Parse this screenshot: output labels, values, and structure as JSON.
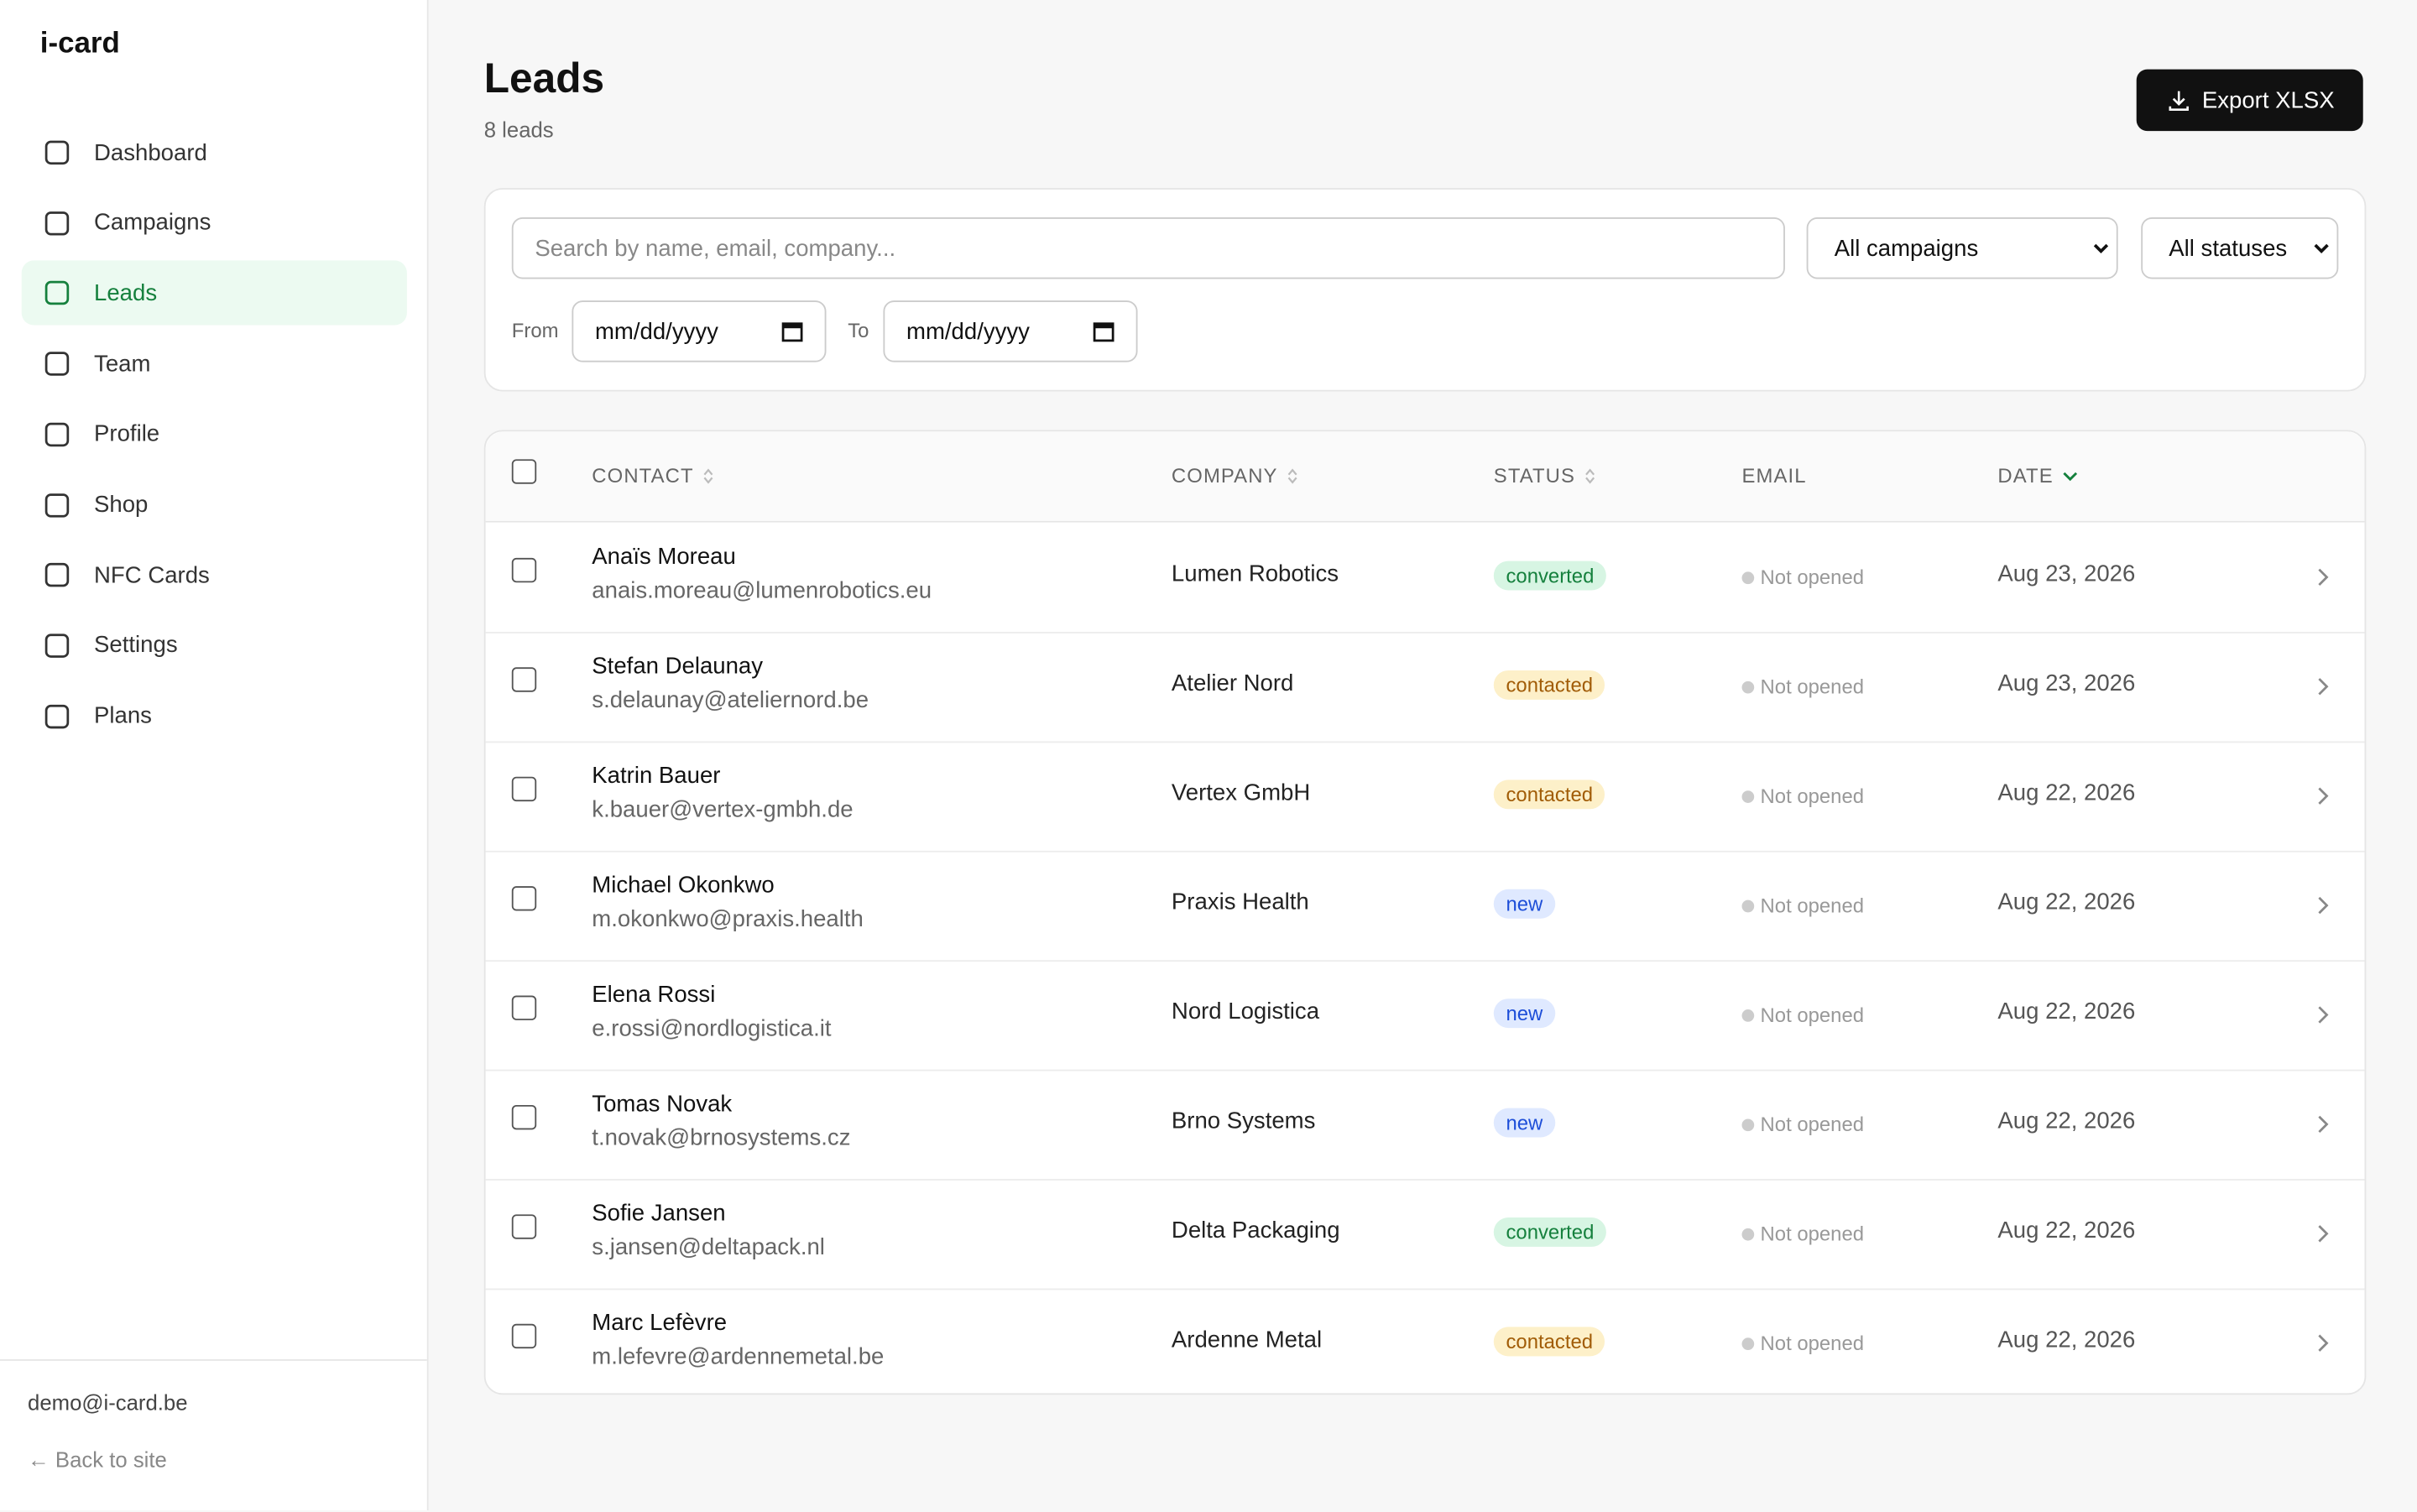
{
  "sidebar": {
    "brand": "i-card",
    "nav": [
      "Dashboard",
      "Campaigns",
      "Leads",
      "Team",
      "Profile",
      "Shop",
      "NFC Cards",
      "Settings",
      "Plans"
    ],
    "active": "Leads",
    "user_email": "demo@i-card.be",
    "back_link": "← Back to site"
  },
  "header": {
    "title": "Leads",
    "count": "8 leads",
    "export_button": "Export XLSX"
  },
  "filters": {
    "search_placeholder": "Search by name, email, company...",
    "campaign_select": "All campaigns",
    "status_select": "All statuses",
    "from_label": "From",
    "from_placeholder": "mm/dd/yyyy",
    "to_label": "To",
    "to_placeholder": "mm/dd/yyyy"
  },
  "table": {
    "columns": [
      "CONTACT",
      "COMPANY",
      "STATUS",
      "EMAIL",
      "DATE"
    ],
    "rows": [
      {
        "name": "Anaïs Moreau",
        "email": "anais.moreau@lumenrobotics.eu",
        "company": "Lumen Robotics",
        "status": "converted",
        "email_status": "Not opened",
        "date": "Aug 23, 2026"
      },
      {
        "name": "Stefan Delaunay",
        "email": "s.delaunay@ateliernord.be",
        "company": "Atelier Nord",
        "status": "contacted",
        "email_status": "Not opened",
        "date": "Aug 23, 2026"
      },
      {
        "name": "Katrin Bauer",
        "email": "k.bauer@vertex-gmbh.de",
        "company": "Vertex GmbH",
        "status": "contacted",
        "email_status": "Not opened",
        "date": "Aug 22, 2026"
      },
      {
        "name": "Michael Okonkwo",
        "email": "m.okonkwo@praxis.health",
        "company": "Praxis Health",
        "status": "new",
        "email_status": "Not opened",
        "date": "Aug 22, 2026"
      },
      {
        "name": "Elena Rossi",
        "email": "e.rossi@nordlogistica.it",
        "company": "Nord Logistica",
        "status": "new",
        "email_status": "Not opened",
        "date": "Aug 22, 2026"
      },
      {
        "name": "Tomas Novak",
        "email": "t.novak@brnosystems.cz",
        "company": "Brno Systems",
        "status": "new",
        "email_status": "Not opened",
        "date": "Aug 22, 2026"
      },
      {
        "name": "Sofie Jansen",
        "email": "s.jansen@deltapack.nl",
        "company": "Delta Packaging",
        "status": "converted",
        "email_status": "Not opened",
        "date": "Aug 22, 2026"
      },
      {
        "name": "Marc Lefèvre",
        "email": "m.lefevre@ardennemetal.be",
        "company": "Ardenne Metal",
        "status": "contacted",
        "email_status": "Not opened",
        "date": "Aug 22, 2026"
      }
    ]
  }
}
